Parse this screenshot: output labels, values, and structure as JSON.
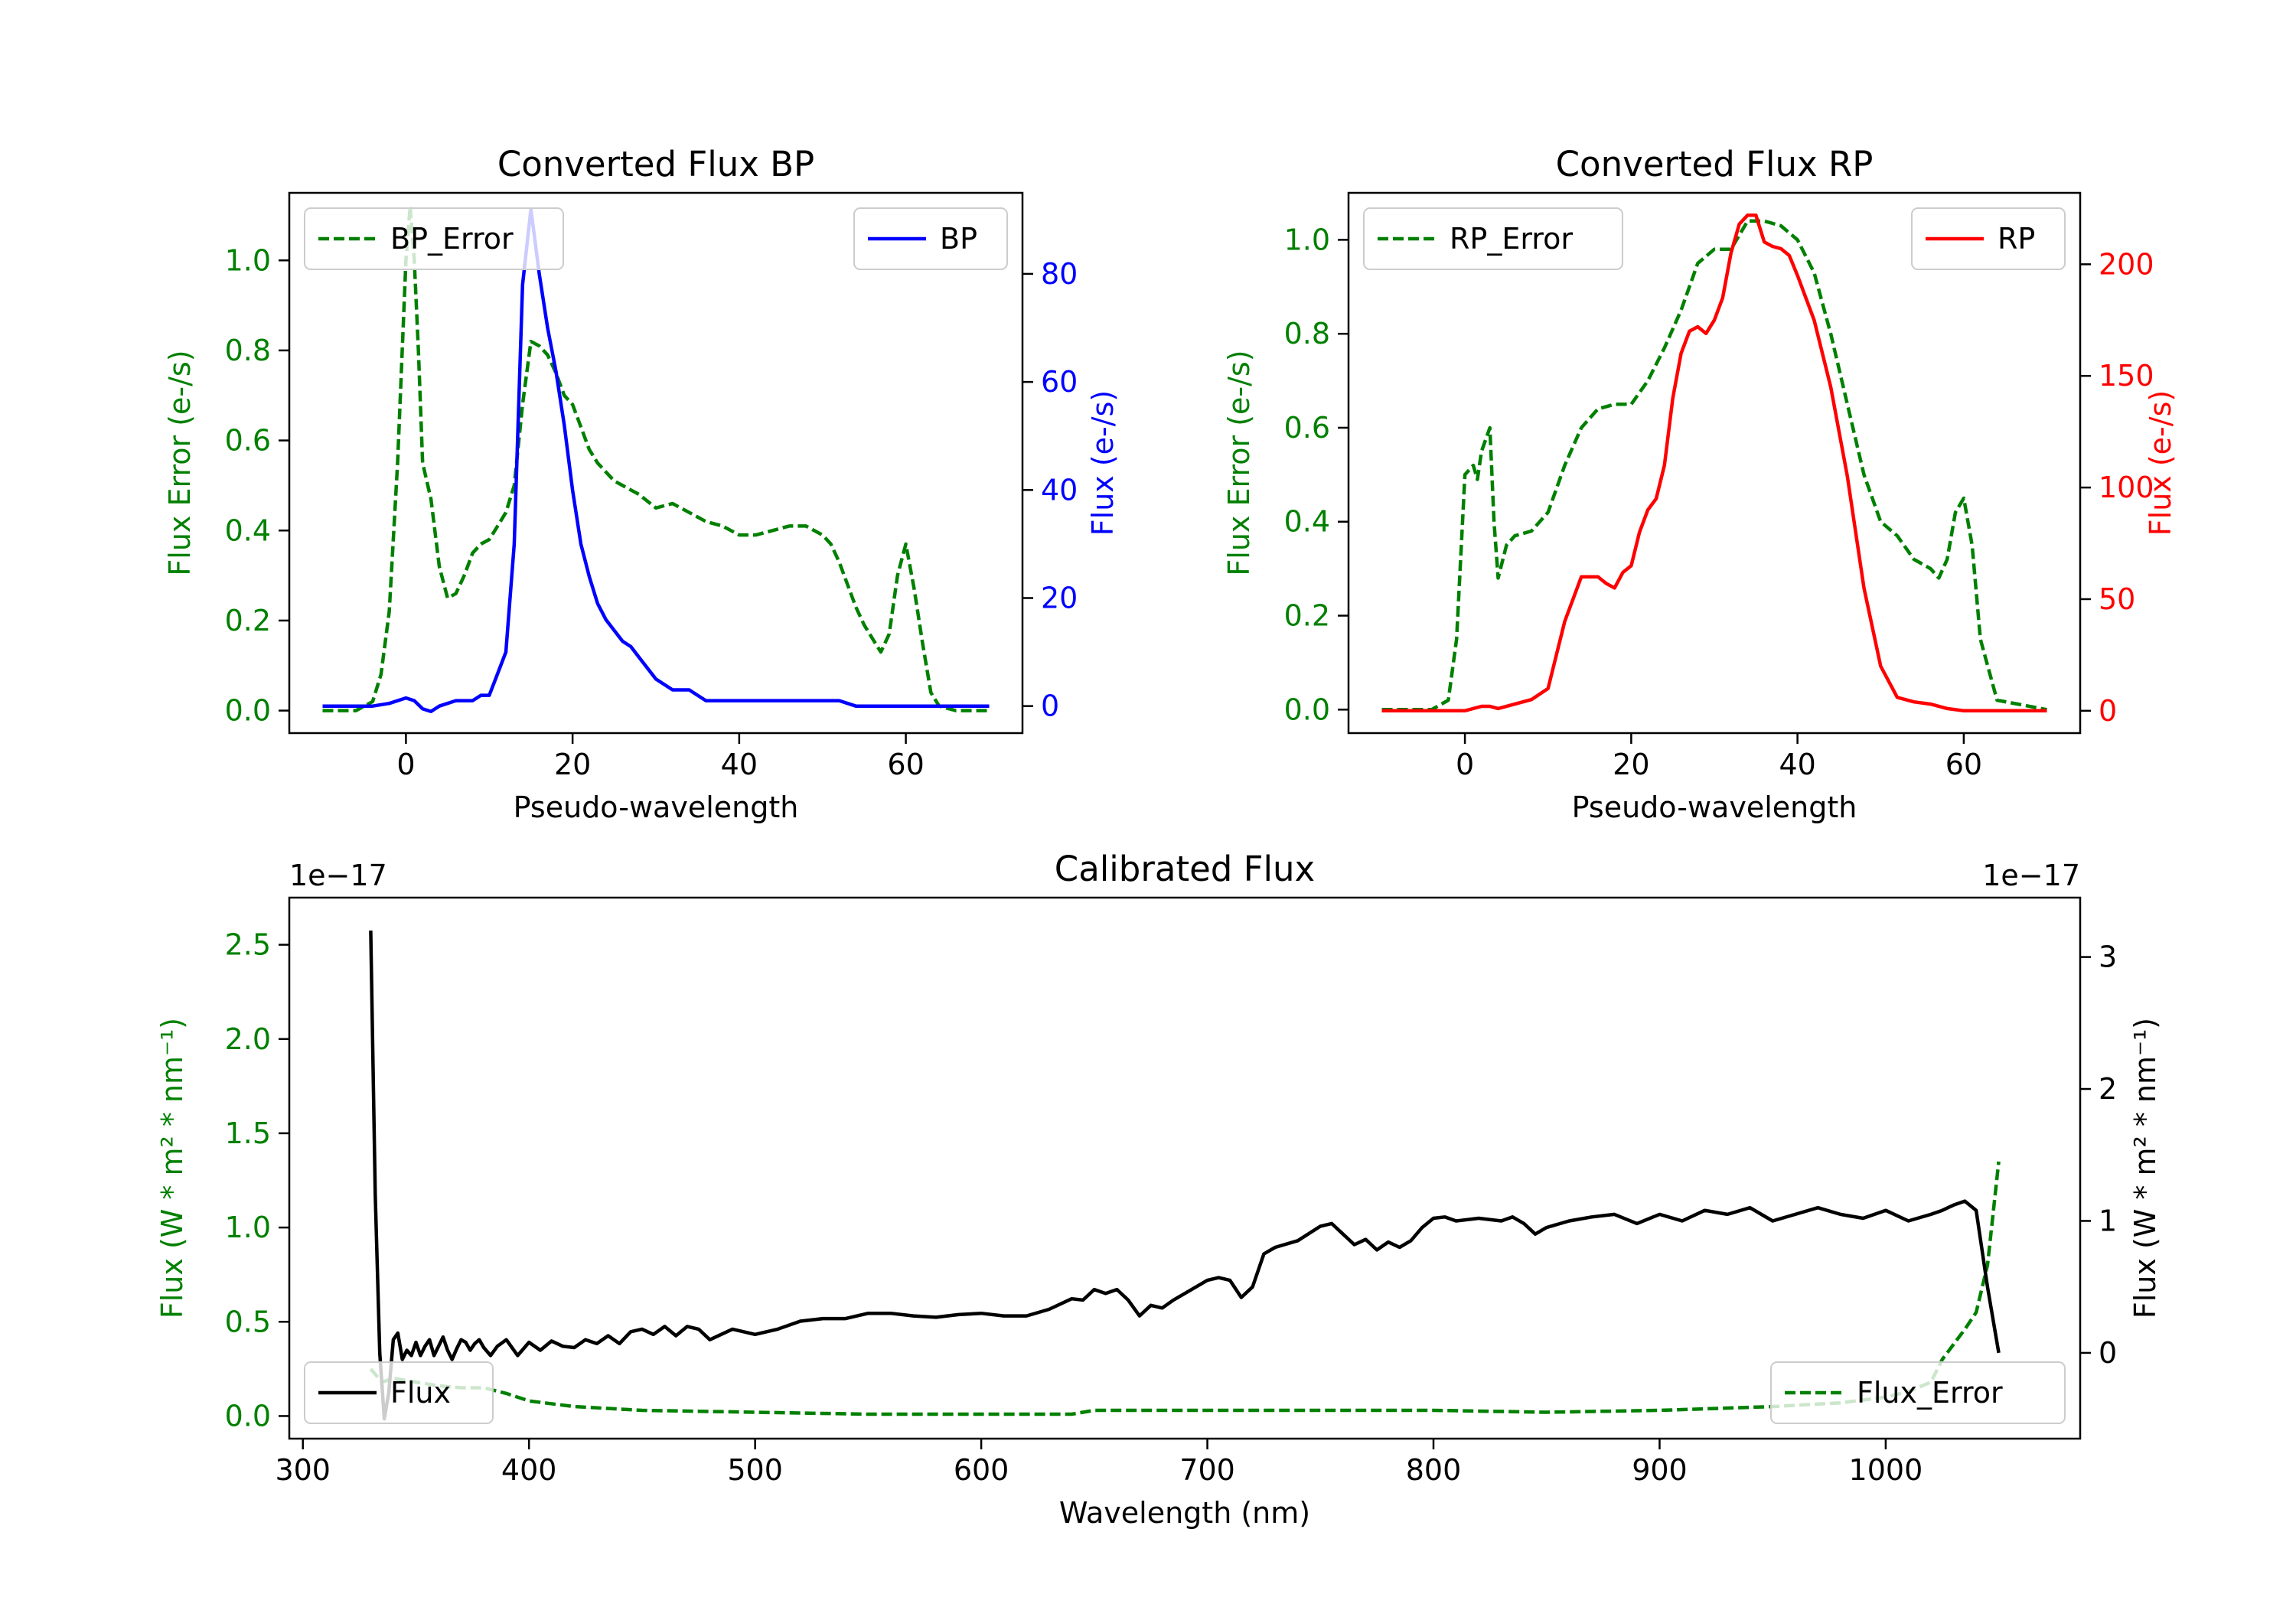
{
  "colors": {
    "green": "#008000",
    "blue": "#0000ff",
    "red": "#ff0000",
    "black": "#000000"
  },
  "chart_data": [
    {
      "id": "bp",
      "type": "line",
      "title": "Converted Flux BP",
      "xlabel": "Pseudo-wavelength",
      "ylabel_left": "Flux Error (e-/s)",
      "ylabel_right": "Flux (e-/s)",
      "xlim": [
        -14,
        74
      ],
      "ylim_left": [
        -0.05,
        1.15
      ],
      "ylim_right": [
        -5,
        95
      ],
      "xticks": [
        0,
        20,
        40,
        60
      ],
      "yticks_left": [
        0.0,
        0.2,
        0.4,
        0.6,
        0.8,
        1.0
      ],
      "yticks_right": [
        0,
        20,
        40,
        60,
        80
      ],
      "legend_left": {
        "label": "BP_Error",
        "placement": "upper left"
      },
      "legend_right": {
        "label": "BP",
        "placement": "upper right"
      },
      "series": [
        {
          "name": "BP_Error",
          "axis": "left",
          "color": "#008000",
          "dashed": true,
          "x": [
            -10,
            -6,
            -4,
            -3,
            -2,
            -1,
            0,
            0.5,
            1,
            1.5,
            2,
            3,
            4,
            5,
            6,
            7,
            8,
            9,
            10,
            11,
            12,
            13,
            14,
            15,
            16,
            17,
            18,
            19,
            20,
            21,
            22,
            23,
            24,
            25,
            26,
            27,
            28,
            30,
            32,
            34,
            36,
            38,
            40,
            42,
            44,
            46,
            48,
            50,
            51,
            52,
            53,
            54,
            55,
            56,
            57,
            58,
            59,
            60,
            61,
            62,
            63,
            64,
            66,
            70
          ],
          "y": [
            0,
            0,
            0.02,
            0.08,
            0.22,
            0.55,
            1.0,
            1.12,
            1.0,
            0.8,
            0.55,
            0.47,
            0.32,
            0.25,
            0.26,
            0.3,
            0.35,
            0.37,
            0.38,
            0.41,
            0.44,
            0.5,
            0.68,
            0.82,
            0.81,
            0.79,
            0.75,
            0.7,
            0.68,
            0.63,
            0.58,
            0.55,
            0.53,
            0.51,
            0.5,
            0.49,
            0.48,
            0.45,
            0.46,
            0.44,
            0.42,
            0.41,
            0.39,
            0.39,
            0.4,
            0.41,
            0.41,
            0.39,
            0.37,
            0.33,
            0.28,
            0.23,
            0.19,
            0.16,
            0.13,
            0.17,
            0.3,
            0.37,
            0.27,
            0.15,
            0.04,
            0.01,
            0,
            0
          ]
        },
        {
          "name": "BP",
          "axis": "right",
          "color": "#0000ff",
          "dashed": false,
          "x": [
            -10,
            -4,
            -2,
            0,
            1,
            2,
            3,
            4,
            6,
            8,
            9,
            10,
            11,
            12,
            13,
            14,
            15,
            16,
            17,
            18,
            19,
            20,
            21,
            22,
            23,
            24,
            25,
            26,
            27,
            28,
            30,
            32,
            34,
            36,
            38,
            40,
            42,
            44,
            46,
            48,
            50,
            52,
            54,
            56,
            58,
            60,
            62,
            64,
            66,
            70
          ],
          "y": [
            0,
            0,
            0.5,
            1.5,
            1,
            -0.5,
            -1,
            0,
            1,
            1,
            2,
            2,
            6,
            10,
            30,
            78,
            92,
            80,
            70,
            62,
            52,
            40,
            30,
            24,
            19,
            16,
            14,
            12,
            11,
            9,
            5,
            3,
            3,
            1,
            1,
            1,
            1,
            1,
            1,
            1,
            1,
            1,
            0,
            0,
            0,
            0,
            0,
            0,
            0,
            0
          ]
        }
      ]
    },
    {
      "id": "rp",
      "type": "line",
      "title": "Converted Flux RP",
      "xlabel": "Pseudo-wavelength",
      "ylabel_left": "Flux Error (e-/s)",
      "ylabel_right": "Flux (e-/s)",
      "xlim": [
        -14,
        74
      ],
      "ylim_left": [
        -0.05,
        1.1
      ],
      "ylim_right": [
        -10,
        232
      ],
      "xticks": [
        0,
        20,
        40,
        60
      ],
      "yticks_left": [
        0.0,
        0.2,
        0.4,
        0.6,
        0.8,
        1.0
      ],
      "yticks_right": [
        0,
        50,
        100,
        150,
        200
      ],
      "legend_left": {
        "label": "RP_Error",
        "placement": "upper left"
      },
      "legend_right": {
        "label": "RP",
        "placement": "upper right"
      },
      "series": [
        {
          "name": "RP_Error",
          "axis": "left",
          "color": "#008000",
          "dashed": true,
          "x": [
            -10,
            -4,
            -2,
            -1,
            0,
            1,
            1.5,
            2,
            3,
            3.5,
            4,
            5,
            6,
            8,
            10,
            12,
            14,
            16,
            18,
            20,
            22,
            24,
            26,
            28,
            30,
            32,
            34,
            36,
            38,
            40,
            42,
            44,
            46,
            48,
            50,
            52,
            54,
            56,
            57,
            58,
            59,
            60,
            61,
            62,
            64,
            70
          ],
          "y": [
            0,
            0,
            0.02,
            0.15,
            0.5,
            0.52,
            0.49,
            0.55,
            0.6,
            0.4,
            0.28,
            0.35,
            0.37,
            0.38,
            0.42,
            0.52,
            0.6,
            0.64,
            0.65,
            0.65,
            0.7,
            0.77,
            0.85,
            0.95,
            0.98,
            0.98,
            1.04,
            1.04,
            1.03,
            1.0,
            0.93,
            0.8,
            0.65,
            0.5,
            0.4,
            0.37,
            0.32,
            0.3,
            0.28,
            0.32,
            0.42,
            0.45,
            0.35,
            0.15,
            0.02,
            0
          ]
        },
        {
          "name": "RP",
          "axis": "right",
          "color": "#ff0000",
          "dashed": false,
          "x": [
            -10,
            -2,
            0,
            2,
            3,
            4,
            6,
            8,
            10,
            12,
            14,
            16,
            17,
            18,
            19,
            20,
            21,
            22,
            23,
            24,
            25,
            26,
            27,
            28,
            29,
            30,
            31,
            32,
            33,
            34,
            35,
            36,
            37,
            38,
            39,
            40,
            42,
            44,
            46,
            48,
            50,
            52,
            54,
            56,
            58,
            60,
            62,
            70
          ],
          "y": [
            0,
            0,
            0,
            2,
            2,
            1,
            3,
            5,
            10,
            40,
            60,
            60,
            57,
            55,
            62,
            65,
            80,
            90,
            95,
            110,
            140,
            160,
            170,
            172,
            169,
            175,
            185,
            205,
            218,
            222,
            222,
            210,
            208,
            207,
            204,
            195,
            175,
            145,
            105,
            55,
            20,
            6,
            4,
            3,
            1,
            0,
            0,
            0
          ]
        }
      ]
    },
    {
      "id": "calibrated",
      "type": "line",
      "title": "Calibrated Flux",
      "xlabel": "Wavelength (nm)",
      "ylabel_left": "Flux (W * m² * nm⁻¹)",
      "ylabel_right": "Flux (W * m² * nm⁻¹)",
      "offset_left": "1e−17",
      "offset_right": "1e−17",
      "xlim": [
        294,
        1086
      ],
      "ylim_left": [
        -0.12,
        2.75
      ],
      "ylim_right": [
        -0.65,
        3.45
      ],
      "xticks": [
        300,
        400,
        500,
        600,
        700,
        800,
        900,
        1000
      ],
      "yticks_left": [
        0.0,
        0.5,
        1.0,
        1.5,
        2.0,
        2.5
      ],
      "yticks_right": [
        0,
        1,
        2,
        3
      ],
      "legend_left": {
        "label": "Flux",
        "placement": "lower left"
      },
      "legend_right": {
        "label": "Flux_Error",
        "placement": "lower right"
      },
      "series": [
        {
          "name": "Flux_Error",
          "axis": "left",
          "color": "#008000",
          "dashed": true,
          "x": [
            330,
            335,
            340,
            350,
            360,
            370,
            380,
            390,
            400,
            420,
            450,
            500,
            550,
            600,
            640,
            650,
            700,
            750,
            800,
            850,
            900,
            950,
            980,
            1000,
            1010,
            1020,
            1025,
            1030,
            1035,
            1040,
            1045,
            1050
          ],
          "y": [
            0.25,
            0.18,
            0.2,
            0.18,
            0.16,
            0.15,
            0.15,
            0.12,
            0.08,
            0.05,
            0.03,
            0.02,
            0.01,
            0.01,
            0.01,
            0.03,
            0.03,
            0.03,
            0.03,
            0.02,
            0.03,
            0.05,
            0.07,
            0.1,
            0.13,
            0.18,
            0.3,
            0.38,
            0.46,
            0.55,
            0.8,
            1.35
          ]
        },
        {
          "name": "Flux",
          "axis": "right",
          "color": "#000000",
          "dashed": false,
          "x": [
            330,
            332,
            334,
            336,
            338,
            340,
            342,
            344,
            346,
            348,
            350,
            352,
            354,
            356,
            358,
            360,
            362,
            364,
            366,
            368,
            370,
            372,
            374,
            376,
            378,
            380,
            383,
            386,
            390,
            395,
            400,
            405,
            410,
            415,
            420,
            425,
            430,
            435,
            440,
            445,
            450,
            455,
            460,
            465,
            470,
            475,
            480,
            490,
            500,
            510,
            520,
            530,
            540,
            550,
            560,
            570,
            580,
            590,
            600,
            610,
            620,
            630,
            640,
            645,
            650,
            655,
            660,
            665,
            670,
            675,
            680,
            685,
            690,
            695,
            700,
            705,
            710,
            715,
            720,
            725,
            730,
            740,
            750,
            755,
            760,
            765,
            770,
            775,
            780,
            785,
            790,
            795,
            800,
            805,
            810,
            820,
            830,
            835,
            840,
            845,
            850,
            860,
            870,
            880,
            890,
            900,
            910,
            920,
            930,
            940,
            950,
            960,
            970,
            980,
            990,
            1000,
            1010,
            1020,
            1025,
            1030,
            1035,
            1040,
            1045,
            1050
          ],
          "y": [
            3.2,
            1.2,
            0,
            -0.5,
            -0.3,
            0.1,
            0.15,
            -0.05,
            0.02,
            -0.02,
            0.08,
            -0.02,
            0.05,
            0.1,
            -0.02,
            0.05,
            0.12,
            0.02,
            -0.05,
            0.03,
            0.1,
            0.08,
            0.02,
            0.07,
            0.1,
            0.04,
            -0.02,
            0.05,
            0.1,
            -0.02,
            0.08,
            0.02,
            0.09,
            0.05,
            0.04,
            0.1,
            0.07,
            0.13,
            0.07,
            0.16,
            0.18,
            0.14,
            0.2,
            0.13,
            0.2,
            0.18,
            0.1,
            0.18,
            0.14,
            0.18,
            0.24,
            0.26,
            0.26,
            0.3,
            0.3,
            0.28,
            0.27,
            0.29,
            0.3,
            0.28,
            0.28,
            0.33,
            0.41,
            0.4,
            0.48,
            0.45,
            0.48,
            0.4,
            0.28,
            0.36,
            0.34,
            0.4,
            0.45,
            0.5,
            0.55,
            0.57,
            0.55,
            0.42,
            0.5,
            0.75,
            0.8,
            0.85,
            0.96,
            0.98,
            0.9,
            0.82,
            0.86,
            0.78,
            0.84,
            0.8,
            0.85,
            0.95,
            1.02,
            1.03,
            1.0,
            1.02,
            1.0,
            1.03,
            0.98,
            0.9,
            0.95,
            1.0,
            1.03,
            1.05,
            0.98,
            1.05,
            1.0,
            1.08,
            1.05,
            1.1,
            1.0,
            1.05,
            1.1,
            1.05,
            1.02,
            1.08,
            1.0,
            1.05,
            1.08,
            1.12,
            1.15,
            1.08,
            0.5,
            0.0
          ]
        }
      ]
    }
  ]
}
